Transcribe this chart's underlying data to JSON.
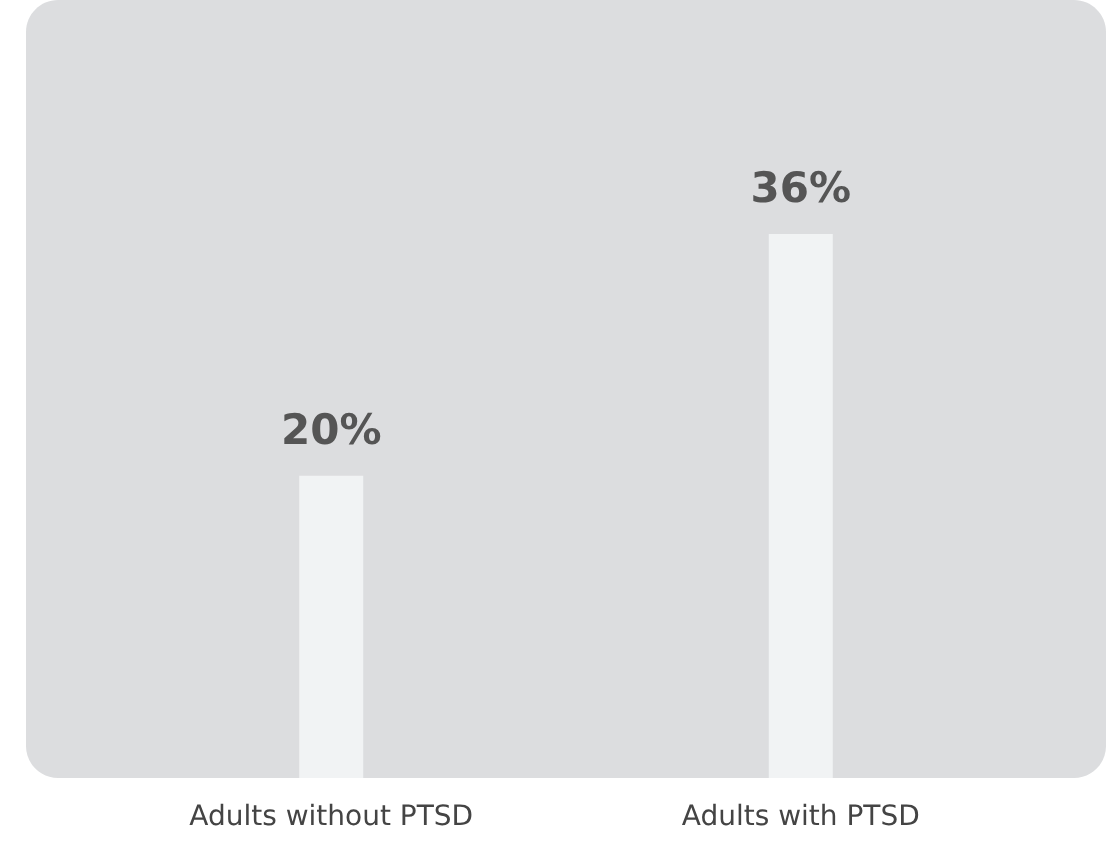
{
  "chart_data": {
    "type": "bar",
    "categories": [
      "Adults without PTSD",
      "Adults with PTSD"
    ],
    "values": [
      20,
      36
    ],
    "color": "#f1f3f4",
    "data_labels": true,
    "value_labels": [
      "20%",
      "36%"
    ]
  }
}
